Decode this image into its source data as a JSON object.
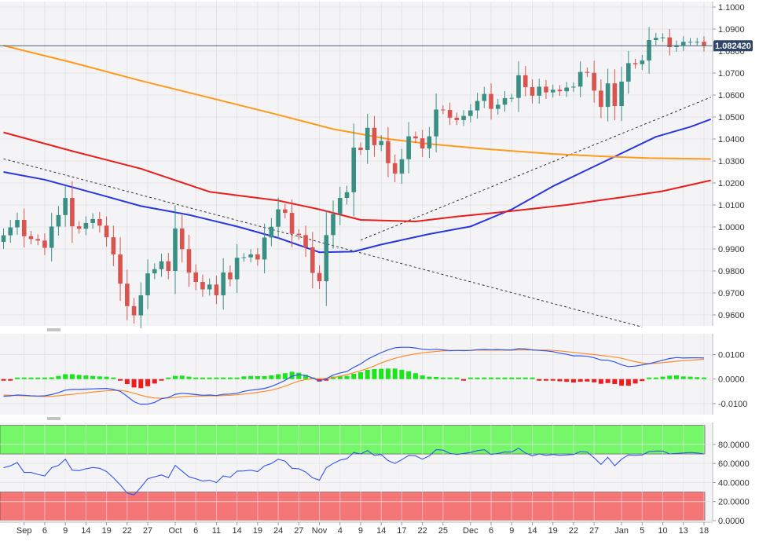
{
  "colors": {
    "background": "#ffffff",
    "panel_bg": "#f4f4f6",
    "grid": "#e4e4e8",
    "bull_candle": "#3a8f85",
    "bear_candle": "#d9534f",
    "sma20": "#2a36e0",
    "sma100": "#ec1c1c",
    "sma200": "#ff9a1a",
    "trendline": "#333333",
    "price_line": "#4a5f7a",
    "price_tag": "#2e4468",
    "macd_line": "#3355ee",
    "signal_line": "#ff8c2a",
    "hist_pos": "#19e619",
    "hist_neg": "#ee1c1c",
    "rsi_line": "#3355ee",
    "rsi_over": "#76f76a",
    "rsi_under": "#f47676"
  },
  "price_tag": "1.082420",
  "chart_data": [
    {
      "type": "candlestick",
      "panel": "price",
      "ylim": [
        0.955,
        1.1025
      ],
      "yticks": [
        "1.1000",
        "1.0900",
        "1.0800",
        "1.0700",
        "1.0600",
        "1.0500",
        "1.0400",
        "1.0300",
        "1.0200",
        "1.0100",
        "1.0000",
        "0.9900",
        "0.9800",
        "0.9700",
        "0.9600"
      ],
      "ytick_values": [
        1.1,
        1.09,
        1.08,
        1.07,
        1.06,
        1.05,
        1.04,
        1.03,
        1.02,
        1.01,
        1.0,
        0.99,
        0.98,
        0.97,
        0.96
      ],
      "date_labels": [
        {
          "label": "Sep",
          "i": 3
        },
        {
          "label": "6",
          "i": 6
        },
        {
          "label": "9",
          "i": 9
        },
        {
          "label": "14",
          "i": 12
        },
        {
          "label": "19",
          "i": 15
        },
        {
          "label": "22",
          "i": 18
        },
        {
          "label": "27",
          "i": 21
        },
        {
          "label": "Oct",
          "i": 25
        },
        {
          "label": "6",
          "i": 28
        },
        {
          "label": "11",
          "i": 31
        },
        {
          "label": "14",
          "i": 34
        },
        {
          "label": "19",
          "i": 37
        },
        {
          "label": "24",
          "i": 40
        },
        {
          "label": "27",
          "i": 43
        },
        {
          "label": "Nov",
          "i": 46
        },
        {
          "label": "4",
          "i": 49
        },
        {
          "label": "9",
          "i": 52
        },
        {
          "label": "14",
          "i": 55
        },
        {
          "label": "17",
          "i": 58
        },
        {
          "label": "22",
          "i": 61
        },
        {
          "label": "25",
          "i": 64
        },
        {
          "label": "Dec",
          "i": 68
        },
        {
          "label": "6",
          "i": 71
        },
        {
          "label": "9",
          "i": 74
        },
        {
          "label": "14",
          "i": 77
        },
        {
          "label": "19",
          "i": 80
        },
        {
          "label": "22",
          "i": 83
        },
        {
          "label": "27",
          "i": 86
        },
        {
          "label": "Jan",
          "i": 90
        },
        {
          "label": "5",
          "i": 93
        },
        {
          "label": "10",
          "i": 96
        },
        {
          "label": "13",
          "i": 99
        },
        {
          "label": "18",
          "i": 102
        }
      ],
      "closes": [
        0.9962,
        0.9998,
        1.0032,
        0.9958,
        0.9945,
        0.9938,
        0.9905,
        1.0002,
        1.0054,
        1.0132,
        1.0003,
        0.9992,
        1.0018,
        1.0036,
        1.0006,
        0.9953,
        0.9875,
        0.9742,
        0.964,
        0.9598,
        0.9689,
        0.9789,
        0.9808,
        0.9844,
        0.98,
        0.9993,
        0.9899,
        0.9793,
        0.975,
        0.9716,
        0.9738,
        0.9689,
        0.9793,
        0.9762,
        0.986,
        0.9862,
        0.9875,
        0.9852,
        0.9952,
        1.0001,
        1.008,
        1.0064,
        0.9969,
        0.9963,
        0.9907,
        0.9791,
        0.9753,
        0.9963,
        1.0059,
        1.0132,
        1.0158,
        1.0361,
        1.035,
        1.0451,
        1.0372,
        1.0391,
        1.029,
        1.0243,
        1.0308,
        1.0412,
        1.0403,
        1.0357,
        1.0412,
        1.0534,
        1.0532,
        1.0497,
        1.0486,
        1.0505,
        1.053,
        1.0573,
        1.0605,
        1.0537,
        1.0556,
        1.0586,
        1.0587,
        1.069,
        1.0636,
        1.0597,
        1.0638,
        1.0612,
        1.0624,
        1.0617,
        1.0634,
        1.0638,
        1.0705,
        1.0701,
        1.062,
        1.0546,
        1.0653,
        1.055,
        1.0661,
        1.0745,
        1.074,
        1.0757,
        1.085,
        1.086,
        1.0862,
        1.0818,
        1.0826,
        1.0842,
        1.0842,
        1.0842,
        1.0824
      ],
      "series": [
        {
          "name": "SMA20",
          "points": [
            [
              0,
              1.025
            ],
            [
              6,
              1.0215
            ],
            [
              14,
              1.0147
            ],
            [
              20,
              1.0095
            ],
            [
              27,
              1.0055
            ],
            [
              34,
              1.0002
            ],
            [
              40,
              0.995
            ],
            [
              46,
              0.9885
            ],
            [
              51,
              0.9888
            ],
            [
              55,
              0.992
            ],
            [
              62,
              0.9968
            ],
            [
              68,
              1.0002
            ],
            [
              74,
              1.008
            ],
            [
              80,
              1.0185
            ],
            [
              88,
              1.0305
            ],
            [
              95,
              1.041
            ],
            [
              100,
              1.0455
            ],
            [
              103,
              1.049
            ]
          ]
        },
        {
          "name": "SMA100",
          "points": [
            [
              0,
              1.043
            ],
            [
              10,
              1.0345
            ],
            [
              20,
              1.0265
            ],
            [
              30,
              1.016
            ],
            [
              40,
              1.012
            ],
            [
              46,
              1.008
            ],
            [
              52,
              1.0032
            ],
            [
              60,
              1.0025
            ],
            [
              66,
              1.0047
            ],
            [
              74,
              1.0072
            ],
            [
              82,
              1.01
            ],
            [
              90,
              1.0135
            ],
            [
              96,
              1.0163
            ],
            [
              103,
              1.0212
            ]
          ]
        },
        {
          "name": "SMA200",
          "points": [
            [
              0,
              1.0825
            ],
            [
              10,
              1.0748
            ],
            [
              20,
              1.0665
            ],
            [
              30,
              1.0588
            ],
            [
              40,
              1.051
            ],
            [
              48,
              1.0445
            ],
            [
              56,
              1.04
            ],
            [
              62,
              1.0378
            ],
            [
              70,
              1.0355
            ],
            [
              80,
              1.0332
            ],
            [
              88,
              1.032
            ],
            [
              94,
              1.0313
            ],
            [
              103,
              1.0309
            ]
          ]
        }
      ],
      "trendlines": [
        {
          "name": "down",
          "from": [
            0,
            1.031
          ],
          "to": [
            93,
            0.9545
          ]
        },
        {
          "name": "up",
          "from": [
            52,
            0.994
          ],
          "to": [
            103,
            1.059
          ]
        }
      ],
      "horizontal_line": 1.08242
    },
    {
      "type": "line",
      "panel": "macd",
      "ylim": [
        -0.0145,
        0.0185
      ],
      "yticks": [
        "0.0100",
        "0.0000",
        "-0.0100"
      ],
      "ytick_values": [
        0.01,
        0.0,
        -0.01
      ],
      "macd": [
        -0.007,
        -0.0068,
        -0.0065,
        -0.0066,
        -0.0068,
        -0.0069,
        -0.0068,
        -0.0063,
        -0.0055,
        -0.0045,
        -0.0042,
        -0.0042,
        -0.0041,
        -0.004,
        -0.0039,
        -0.0038,
        -0.0042,
        -0.005,
        -0.007,
        -0.0092,
        -0.0103,
        -0.0102,
        -0.0095,
        -0.008,
        -0.0075,
        -0.0062,
        -0.0058,
        -0.006,
        -0.0063,
        -0.0066,
        -0.0065,
        -0.0067,
        -0.0062,
        -0.0061,
        -0.0058,
        -0.005,
        -0.0045,
        -0.0042,
        -0.0038,
        -0.003,
        -0.0018,
        -0.0005,
        0.0012,
        0.0018,
        0.0015,
        0.0005,
        -0.0008,
        0.0002,
        0.0016,
        0.0025,
        0.0031,
        0.0048,
        0.0062,
        0.0081,
        0.0095,
        0.0108,
        0.0119,
        0.0128,
        0.013,
        0.013,
        0.0127,
        0.0122,
        0.012,
        0.0122,
        0.0119,
        0.0116,
        0.0117,
        0.0116,
        0.0117,
        0.012,
        0.0121,
        0.012,
        0.0121,
        0.0119,
        0.0119,
        0.0124,
        0.0123,
        0.0119,
        0.0117,
        0.0115,
        0.0112,
        0.0106,
        0.0101,
        0.0095,
        0.0095,
        0.0093,
        0.0087,
        0.0078,
        0.0077,
        0.007,
        0.0058,
        0.0051,
        0.0053,
        0.0058,
        0.0063,
        0.007,
        0.0077,
        0.0084,
        0.0088,
        0.0086,
        0.0087,
        0.0087,
        0.0086
      ],
      "signal": [
        -0.0065,
        -0.0066,
        -0.0067,
        -0.0068,
        -0.0069,
        -0.007,
        -0.0071,
        -0.007,
        -0.0068,
        -0.0065,
        -0.0062,
        -0.0059,
        -0.0056,
        -0.0053,
        -0.005,
        -0.0048,
        -0.0046,
        -0.0046,
        -0.005,
        -0.0058,
        -0.0066,
        -0.0073,
        -0.0077,
        -0.0078,
        -0.0077,
        -0.0075,
        -0.0072,
        -0.007,
        -0.0069,
        -0.0069,
        -0.0068,
        -0.0068,
        -0.0067,
        -0.0066,
        -0.0064,
        -0.0061,
        -0.0058,
        -0.0054,
        -0.005,
        -0.0045,
        -0.0038,
        -0.0029,
        -0.0018,
        -0.0008,
        -0.0002,
        0.0002,
        0.0002,
        0.0003,
        0.0006,
        0.0012,
        0.0018,
        0.0026,
        0.0034,
        0.0043,
        0.0054,
        0.0066,
        0.0076,
        0.0085,
        0.0092,
        0.0098,
        0.0103,
        0.0107,
        0.011,
        0.0113,
        0.0115,
        0.0116,
        0.0117,
        0.0117,
        0.0117,
        0.0118,
        0.0118,
        0.0118,
        0.0118,
        0.0118,
        0.0118,
        0.0119,
        0.0119,
        0.0119,
        0.0118,
        0.0118,
        0.0117,
        0.0115,
        0.0112,
        0.0109,
        0.0106,
        0.0103,
        0.01,
        0.0097,
        0.0093,
        0.009,
        0.0085,
        0.0078,
        0.0071,
        0.0066,
        0.0063,
        0.0065,
        0.0067,
        0.007,
        0.0073,
        0.0075,
        0.0077,
        0.0079,
        0.0081
      ]
    },
    {
      "type": "line",
      "panel": "rsi",
      "ylim": [
        0,
        103
      ],
      "yticks": [
        "80.0000",
        "60.0000",
        "40.0000",
        "20.0000",
        "0.0000"
      ],
      "ytick_values": [
        80,
        60,
        40,
        20,
        0
      ],
      "overbought_zone": [
        70,
        100
      ],
      "oversold_zone": [
        0,
        30
      ],
      "rsi": [
        55.5,
        57.5,
        61.0,
        50.6,
        50.6,
        48.5,
        47.0,
        55.5,
        58.0,
        64.5,
        53.0,
        52.5,
        54.5,
        55.8,
        55.0,
        51.5,
        45.0,
        37.5,
        29.0,
        27.0,
        35.0,
        44.0,
        46.0,
        48.0,
        45.0,
        58.0,
        52.0,
        46.0,
        44.0,
        41.5,
        42.5,
        40.0,
        47.0,
        45.5,
        52.0,
        52.2,
        53.0,
        51.5,
        57.5,
        60.0,
        64.5,
        62.5,
        55.0,
        54.5,
        51.0,
        45.0,
        42.5,
        55.5,
        60.0,
        63.5,
        65.0,
        71.5,
        70.0,
        73.5,
        68.5,
        69.5,
        63.0,
        60.0,
        64.0,
        68.5,
        68.0,
        64.5,
        68.0,
        74.5,
        74.0,
        70.5,
        69.5,
        70.5,
        71.5,
        73.5,
        74.5,
        69.5,
        70.5,
        72.0,
        72.0,
        76.0,
        71.0,
        68.0,
        70.0,
        68.5,
        69.5,
        68.5,
        69.0,
        69.5,
        72.5,
        72.0,
        66.0,
        59.0,
        66.5,
        57.5,
        64.5,
        69.0,
        68.5,
        69.0,
        72.5,
        73.0,
        73.0,
        70.0,
        70.5,
        71.0,
        71.5,
        71.0,
        70.0
      ]
    }
  ]
}
